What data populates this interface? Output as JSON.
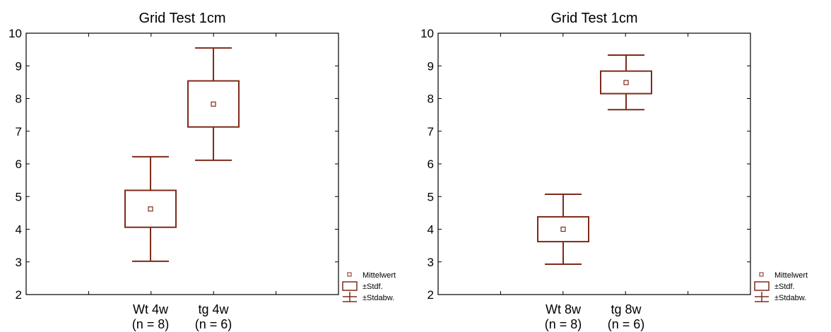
{
  "colors": {
    "series": "#7f2a1a",
    "axis": "#000000",
    "background": "#ffffff"
  },
  "chart_data": [
    {
      "type": "box",
      "title": "Grid Test 1cm",
      "xlabel": "",
      "ylabel": "",
      "ylim": [
        2,
        10
      ],
      "yticks": [
        2,
        3,
        4,
        5,
        6,
        7,
        8,
        9,
        10
      ],
      "grid": false,
      "legend_position": "bottom-right-outside",
      "categories": [
        {
          "label_line1": "Wt 4w",
          "label_line2": "(n = 8)"
        },
        {
          "label_line1": "tg 4w",
          "label_line2": "(n = 6)"
        }
      ],
      "boxes": [
        {
          "mean": 4.62,
          "se_low": 4.06,
          "se_high": 5.19,
          "sd_low": 3.02,
          "sd_high": 6.22
        },
        {
          "mean": 7.83,
          "se_low": 7.13,
          "se_high": 8.54,
          "sd_low": 6.11,
          "sd_high": 9.55
        }
      ],
      "legend": [
        {
          "symbol": "mean-marker",
          "label": "Mittelwert"
        },
        {
          "symbol": "box",
          "label": "±Stdf."
        },
        {
          "symbol": "whisker",
          "label": "±Stdabw."
        }
      ]
    },
    {
      "type": "box",
      "title": "Grid Test 1cm",
      "xlabel": "",
      "ylabel": "",
      "ylim": [
        2,
        10
      ],
      "yticks": [
        2,
        3,
        4,
        5,
        6,
        7,
        8,
        9,
        10
      ],
      "grid": false,
      "legend_position": "bottom-right-outside",
      "categories": [
        {
          "label_line1": "Wt 8w",
          "label_line2": "(n = 8)"
        },
        {
          "label_line1": "tg 8w",
          "label_line2": "(n = 6)"
        }
      ],
      "boxes": [
        {
          "mean": 4.0,
          "se_low": 3.62,
          "se_high": 4.38,
          "sd_low": 2.93,
          "sd_high": 5.07
        },
        {
          "mean": 8.49,
          "se_low": 8.15,
          "se_high": 8.84,
          "sd_low": 7.66,
          "sd_high": 9.33
        }
      ],
      "legend": [
        {
          "symbol": "mean-marker",
          "label": "Mittelwert"
        },
        {
          "symbol": "box",
          "label": "±Stdf."
        },
        {
          "symbol": "whisker",
          "label": "±Stdabw."
        }
      ]
    }
  ]
}
